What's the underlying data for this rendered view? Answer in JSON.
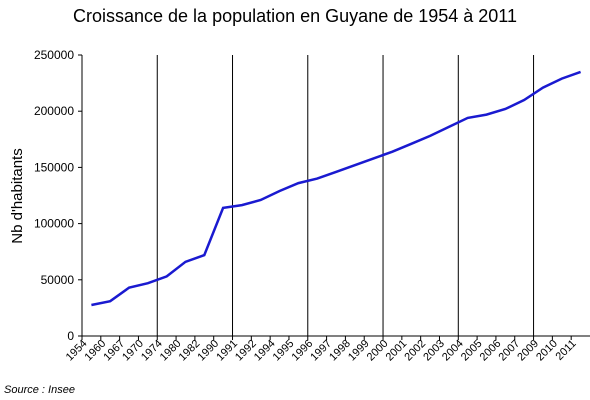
{
  "chart_data": {
    "type": "line",
    "title": "Croissance de la population en Guyane de 1954 à 2011",
    "y_label": "Nb d'habitants",
    "source": "Source : Insee",
    "categories": [
      "1954",
      "1960",
      "1967",
      "1970",
      "1974",
      "1980",
      "1982",
      "1990",
      "1991",
      "1992",
      "1994",
      "1995",
      "1996",
      "1997",
      "1998",
      "1999",
      "2000",
      "2001",
      "2002",
      "2003",
      "2004",
      "2005",
      "2006",
      "2007",
      "2009",
      "2010",
      "2011"
    ],
    "series": [
      {
        "name": "Population",
        "color": "#1a1ad0",
        "values": [
          27600,
          31000,
          43000,
          47000,
          53000,
          66000,
          72000,
          114000,
          116500,
          121000,
          129000,
          136000,
          140000,
          146000,
          152000,
          158000,
          164000,
          171000,
          178000,
          186000,
          194000,
          197000,
          202000,
          210000,
          221000,
          229000,
          235000
        ]
      }
    ],
    "ylim": [
      0,
      250000
    ],
    "yticks": [
      0,
      50000,
      100000,
      150000,
      200000,
      250000
    ],
    "x_grid": true
  }
}
